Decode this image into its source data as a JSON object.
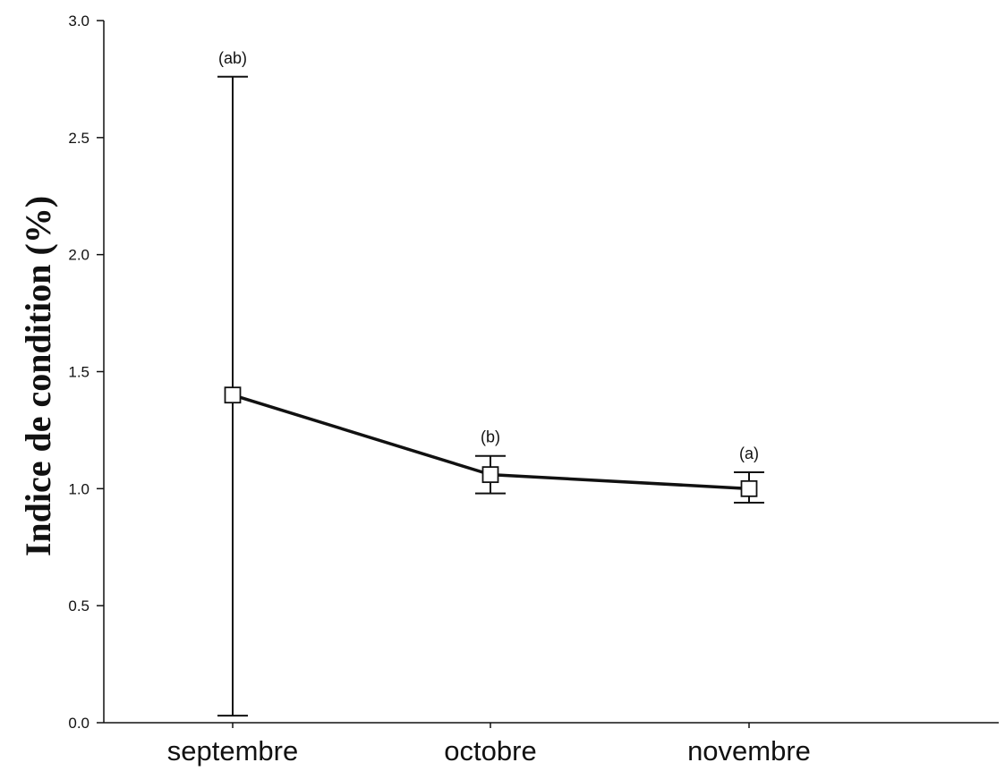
{
  "chart_data": {
    "type": "line",
    "title": "",
    "xlabel": "",
    "ylabel": "Indice de condition (%)",
    "categories": [
      "septembre",
      "octobre",
      "novembre"
    ],
    "series": [
      {
        "values": [
          1.4,
          1.06,
          1.0
        ],
        "error_low": [
          0.03,
          0.98,
          0.94
        ],
        "error_high": [
          2.76,
          1.14,
          1.07
        ],
        "significance_labels": [
          "(ab)",
          "(b)",
          "(a)"
        ],
        "line_color": "#111111",
        "marker": "square",
        "marker_fill": "#ffffff"
      }
    ],
    "ylim": [
      0.0,
      3.0
    ],
    "yticks": [
      0.0,
      0.5,
      1.0,
      1.5,
      2.0,
      2.5,
      3.0
    ],
    "ytick_labels": [
      "0.0",
      "0.5",
      "1.0",
      "1.5",
      "2.0",
      "2.5",
      "3.0"
    ],
    "grid": false,
    "legend": "none"
  }
}
